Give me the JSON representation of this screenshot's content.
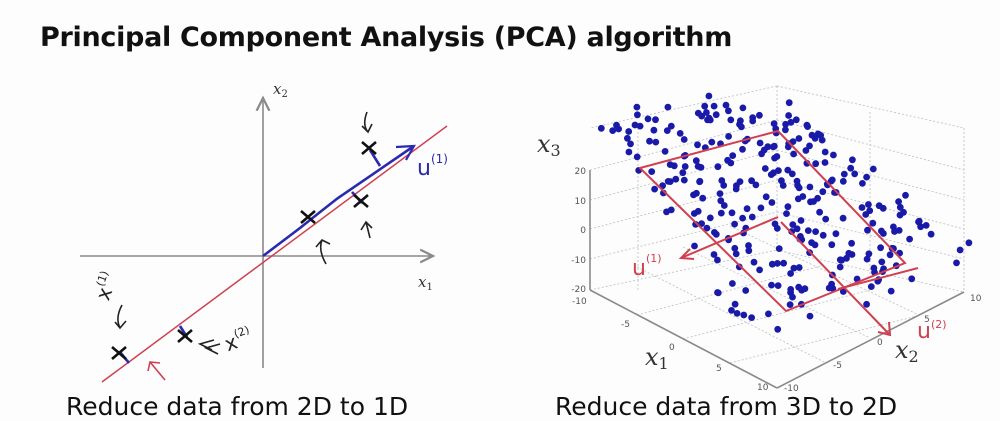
{
  "slide": {
    "title": "Principal Component Analysis (PCA) algorithm",
    "captions": {
      "left": "Reduce data from 2D to 1D",
      "right": "Reduce data from 3D to 2D"
    }
  },
  "left_figure": {
    "axis_labels": {
      "x": "x1",
      "y": "x2"
    },
    "annotations": {
      "u_vector": "u(1)",
      "x1_point": "x(1)",
      "x2_point": "x(2)"
    },
    "colors": {
      "axis": "#8a8a8a",
      "principal_line": "#d04050",
      "projection": "#2a2ab0",
      "points": "#111111"
    }
  },
  "right_figure": {
    "axis_labels": {
      "x1": "x1",
      "x2": "x2",
      "x3": "x3"
    },
    "x3_ticks": [
      "20",
      "10",
      "0",
      "-10",
      "-20"
    ],
    "x1_ticks": [
      "-10",
      "-5",
      "0",
      "5",
      "10"
    ],
    "x2_ticks": [
      "-10",
      "-5",
      "0",
      "5",
      "10"
    ],
    "annotations": {
      "u1": "u(1)",
      "u2": "u(2)"
    },
    "colors": {
      "points": "#1a1aa8",
      "plane": "#d04050",
      "grid": "#bbbbbb"
    }
  },
  "chart_data": [
    {
      "type": "scatter",
      "title": "Reduce data from 2D to 1D",
      "xlabel": "x1",
      "ylabel": "x2",
      "grid": false,
      "points": [
        {
          "x": -3.8,
          "y": -2.4
        },
        {
          "x": -2.0,
          "y": -2.1
        },
        {
          "x": 1.1,
          "y": 1.0
        },
        {
          "x": 2.4,
          "y": 1.4
        },
        {
          "x": 2.6,
          "y": 2.7
        }
      ],
      "principal_direction": "u(1) along line y ≈ 0.75x through origin"
    },
    {
      "type": "scatter",
      "subtype": "3d",
      "title": "Reduce data from 3D to 2D",
      "xlabel": "x1",
      "ylabel": "x2",
      "zlabel": "x3",
      "xlim": [
        -10,
        10
      ],
      "ylim": [
        -10,
        10
      ],
      "zlim": [
        -20,
        20
      ],
      "grid": true,
      "series": [
        {
          "name": "data",
          "color": "#1a1aa8",
          "count_approx": 300
        }
      ],
      "plane_vectors": [
        "u(1)",
        "u(2)"
      ]
    }
  ]
}
